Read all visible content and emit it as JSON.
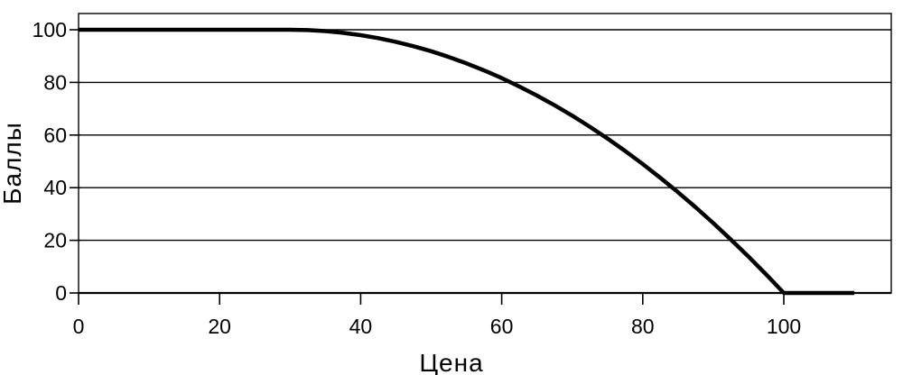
{
  "figure": {
    "background": "#ffffff",
    "ink": "#000000"
  },
  "chart_data": {
    "type": "line",
    "title": "",
    "xlabel": "Цена",
    "ylabel": "Баллы",
    "x_ticks": [
      0,
      20,
      40,
      60,
      80,
      100
    ],
    "y_ticks": [
      0,
      20,
      40,
      60,
      80,
      100
    ],
    "xlim": [
      0,
      115
    ],
    "ylim": [
      0,
      106
    ],
    "grid": "horizontal",
    "legend": "none",
    "line_color": "#000000",
    "points": [
      [
        0,
        100
      ],
      [
        5,
        100
      ],
      [
        10,
        100
      ],
      [
        15,
        100
      ],
      [
        20,
        100
      ],
      [
        25,
        100
      ],
      [
        30,
        100
      ],
      [
        32.5,
        99.87
      ],
      [
        35,
        99.49
      ],
      [
        37.5,
        98.85
      ],
      [
        40,
        97.96
      ],
      [
        42.5,
        96.81
      ],
      [
        45,
        95.41
      ],
      [
        47.5,
        93.75
      ],
      [
        50,
        91.84
      ],
      [
        52.5,
        89.67
      ],
      [
        55,
        87.24
      ],
      [
        57.5,
        84.57
      ],
      [
        60,
        81.63
      ],
      [
        62.5,
        78.44
      ],
      [
        65,
        75
      ],
      [
        67.5,
        71.3
      ],
      [
        70,
        67.35
      ],
      [
        72.5,
        63.14
      ],
      [
        75,
        58.67
      ],
      [
        77.5,
        53.95
      ],
      [
        80,
        48.98
      ],
      [
        82.5,
        43.75
      ],
      [
        85,
        38.27
      ],
      [
        87.5,
        32.53
      ],
      [
        90,
        26.53
      ],
      [
        92.5,
        20.28
      ],
      [
        95,
        13.78
      ],
      [
        97.5,
        7.02
      ],
      [
        100,
        0
      ],
      [
        105,
        0
      ],
      [
        110,
        0
      ]
    ]
  }
}
